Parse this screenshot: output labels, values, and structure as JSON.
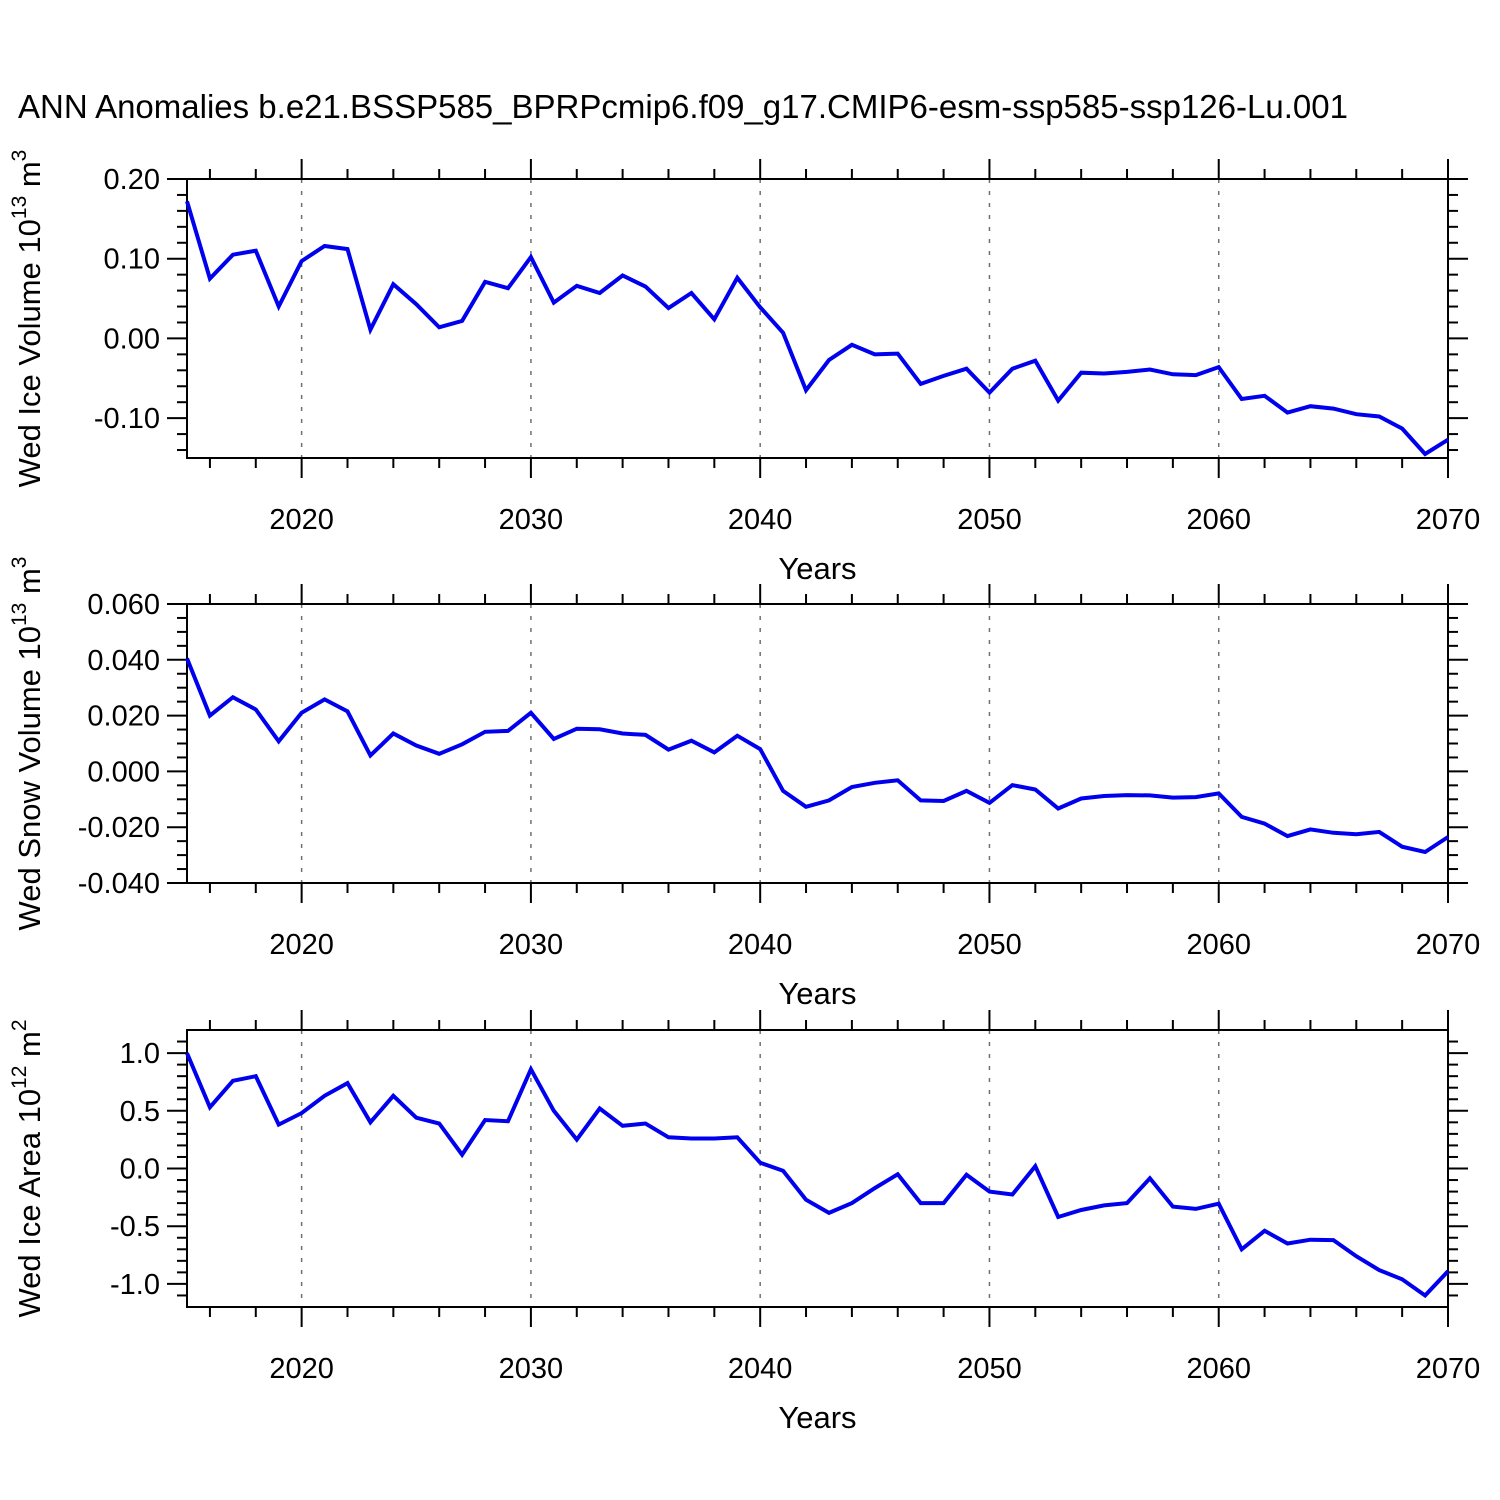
{
  "title": "ANN Anomalies b.e21.BSSP585_BPRPcmip6.f09_g17.CMIP6-esm-ssp585-ssp126-Lu.001",
  "background_color": "#ffffff",
  "line_color": "#0000ee",
  "gridline_color": "#707070",
  "chart_data": [
    {
      "type": "line",
      "id": "wed-ice-volume",
      "ylabel_parts": [
        {
          "text": "Wed Ice Volume 10"
        },
        {
          "sup": "13"
        },
        {
          "text": " m"
        },
        {
          "sup": "3"
        }
      ],
      "xlabel": "Years",
      "x_range": [
        2015,
        2070
      ],
      "x_step": 1,
      "values": [
        0.172,
        0.075,
        0.105,
        0.11,
        0.04,
        0.097,
        0.116,
        0.112,
        0.011,
        0.068,
        0.043,
        0.014,
        0.022,
        0.071,
        0.063,
        0.102,
        0.045,
        0.066,
        0.057,
        0.079,
        0.065,
        0.038,
        0.057,
        0.024,
        0.076,
        0.039,
        0.007,
        -0.065,
        -0.027,
        -0.008,
        -0.02,
        -0.019,
        -0.057,
        -0.047,
        -0.038,
        -0.068,
        -0.038,
        -0.028,
        -0.078,
        -0.043,
        -0.044,
        -0.042,
        -0.039,
        -0.045,
        -0.046,
        -0.036,
        -0.076,
        -0.072,
        -0.093,
        -0.085,
        -0.088,
        -0.095,
        -0.098,
        -0.113,
        -0.145,
        -0.127
      ],
      "ylim": [
        -0.15,
        0.2
      ],
      "ytick_major": [
        0.2,
        0.1,
        0.0,
        -0.1
      ],
      "ytick_labels": [
        "0.20",
        "0.10",
        "0.00",
        "-0.10"
      ],
      "ytick_minor_step": 0.02,
      "xtick_major": [
        2020,
        2030,
        2040,
        2050,
        2060,
        2070
      ],
      "xtick_labels": [
        "2020",
        "2030",
        "2040",
        "2050",
        "2060",
        "2070"
      ],
      "xtick_minor_step": 2,
      "gridlines_x": [
        2020,
        2030,
        2040,
        2050,
        2060
      ],
      "line_color": "#0000ee"
    },
    {
      "type": "line",
      "id": "wed-snow-volume",
      "ylabel_parts": [
        {
          "text": "Wed Snow Volume 10"
        },
        {
          "sup": "13"
        },
        {
          "text": " m"
        },
        {
          "sup": "3"
        }
      ],
      "xlabel": "Years",
      "x_range": [
        2015,
        2070
      ],
      "x_step": 1,
      "values": [
        0.0405,
        0.02,
        0.0266,
        0.0222,
        0.0108,
        0.021,
        0.0258,
        0.0215,
        0.0057,
        0.0136,
        0.0093,
        0.0063,
        0.0097,
        0.0142,
        0.0145,
        0.021,
        0.0116,
        0.0153,
        0.0151,
        0.0136,
        0.0131,
        0.0078,
        0.011,
        0.0068,
        0.0128,
        0.008,
        -0.007,
        -0.0127,
        -0.0104,
        -0.0056,
        -0.0041,
        -0.0032,
        -0.0104,
        -0.0106,
        -0.007,
        -0.0113,
        -0.0049,
        -0.0065,
        -0.0133,
        -0.0097,
        -0.0088,
        -0.0085,
        -0.0086,
        -0.0094,
        -0.0092,
        -0.0079,
        -0.0163,
        -0.0187,
        -0.0232,
        -0.0208,
        -0.022,
        -0.0225,
        -0.0217,
        -0.027,
        -0.0289,
        -0.0235
      ],
      "ylim": [
        -0.04,
        0.06
      ],
      "ytick_major": [
        0.06,
        0.04,
        0.02,
        0.0,
        -0.02,
        -0.04
      ],
      "ytick_labels": [
        "0.060",
        "0.040",
        "0.020",
        "0.000",
        "-0.020",
        "-0.040"
      ],
      "ytick_minor_step": 0.005,
      "xtick_major": [
        2020,
        2030,
        2040,
        2050,
        2060,
        2070
      ],
      "xtick_labels": [
        "2020",
        "2030",
        "2040",
        "2050",
        "2060",
        "2070"
      ],
      "xtick_minor_step": 2,
      "gridlines_x": [
        2020,
        2030,
        2040,
        2050,
        2060
      ],
      "line_color": "#0000ee"
    },
    {
      "type": "line",
      "id": "wed-ice-area",
      "ylabel_parts": [
        {
          "text": "Wed Ice Area 10"
        },
        {
          "sup": "12"
        },
        {
          "text": " m"
        },
        {
          "sup": "2"
        }
      ],
      "xlabel": "Years",
      "x_range": [
        2015,
        2070
      ],
      "x_step": 1,
      "values": [
        1.0,
        0.53,
        0.76,
        0.8,
        0.38,
        0.48,
        0.63,
        0.74,
        0.4,
        0.63,
        0.44,
        0.39,
        0.12,
        0.42,
        0.41,
        0.86,
        0.5,
        0.25,
        0.52,
        0.37,
        0.39,
        0.27,
        0.26,
        0.26,
        0.27,
        0.05,
        -0.02,
        -0.27,
        -0.385,
        -0.3,
        -0.17,
        -0.05,
        -0.3,
        -0.3,
        -0.055,
        -0.2,
        -0.225,
        0.02,
        -0.42,
        -0.36,
        -0.32,
        -0.3,
        -0.085,
        -0.33,
        -0.35,
        -0.305,
        -0.7,
        -0.54,
        -0.65,
        -0.617,
        -0.62,
        -0.76,
        -0.88,
        -0.96,
        -1.1,
        -0.89
      ],
      "ylim": [
        -1.2,
        1.2
      ],
      "ytick_major": [
        1.0,
        0.5,
        0.0,
        -0.5,
        -1.0
      ],
      "ytick_labels": [
        "1.0",
        "0.5",
        "0.0",
        "-0.5",
        "-1.0"
      ],
      "ytick_minor_step": 0.1,
      "xtick_major": [
        2020,
        2030,
        2040,
        2050,
        2060,
        2070
      ],
      "xtick_labels": [
        "2020",
        "2030",
        "2040",
        "2050",
        "2060",
        "2070"
      ],
      "xtick_minor_step": 2,
      "gridlines_x": [
        2020,
        2030,
        2040,
        2050,
        2060
      ],
      "line_color": "#0000ee"
    }
  ]
}
